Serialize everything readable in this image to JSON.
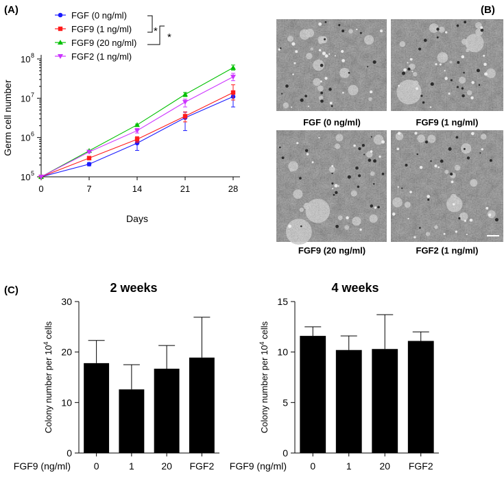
{
  "panels": {
    "a": "(A)",
    "b": "(B)",
    "c": "(C)"
  },
  "chart_data": [
    {
      "type": "line",
      "panel": "A",
      "title": "",
      "xlabel": "Days",
      "ylabel": "Germ cell number",
      "yscale": "log",
      "xlim": [
        0,
        28
      ],
      "ylim_exp": [
        5,
        8
      ],
      "x": [
        0,
        7,
        14,
        21,
        28
      ],
      "x_tick_labels": [
        "0",
        "7",
        "14",
        "21",
        "28"
      ],
      "y_tick_base": "10",
      "y_tick_exponents": [
        "5",
        "6",
        "7",
        "8"
      ],
      "significance_marks": [
        "*",
        "*"
      ],
      "legend_position": "top-left",
      "series": [
        {
          "name": "FGF (0 ng/ml)",
          "color": "#1a1aff",
          "marker": "circle",
          "values": [
            100000,
            210000,
            720000,
            3200000,
            11000000
          ],
          "err_lo": [
            0,
            20000,
            250000,
            1700000,
            5000000
          ],
          "err_hi": [
            0,
            20000,
            150000,
            1200000,
            3000000
          ]
        },
        {
          "name": "FGF9 (1 ng/ml)",
          "color": "#ff1a1a",
          "marker": "square",
          "values": [
            100000,
            300000,
            900000,
            3500000,
            14000000
          ],
          "err_lo": [
            0,
            30000,
            150000,
            1000000,
            5000000
          ],
          "err_hi": [
            0,
            30000,
            150000,
            1000000,
            8000000
          ]
        },
        {
          "name": "FGF9 (20 ng/ml)",
          "color": "#00c000",
          "marker": "triangle-up",
          "values": [
            100000,
            460000,
            2100000,
            12500000,
            60000000
          ],
          "err_lo": [
            0,
            20000,
            100000,
            1500000,
            8000000
          ],
          "err_hi": [
            0,
            20000,
            100000,
            1500000,
            10000000
          ]
        },
        {
          "name": "FGF2 (1 ng/ml)",
          "color": "#cc33ff",
          "marker": "triangle-down",
          "values": [
            100000,
            430000,
            1500000,
            8000000,
            35000000
          ],
          "err_lo": [
            0,
            20000,
            200000,
            2000000,
            7000000
          ],
          "err_hi": [
            0,
            20000,
            200000,
            1500000,
            8000000
          ]
        }
      ]
    },
    {
      "type": "bar",
      "panel": "C-left",
      "title": "2 weeks",
      "ylabel_text": "Colony number per 10",
      "ylabel_sup": "4",
      "ylabel_suffix": " cells",
      "x_axis_caption": "FGF9 (ng/ml)",
      "categories": [
        "0",
        "1",
        "20",
        "FGF2"
      ],
      "values": [
        17.8,
        12.6,
        16.7,
        18.9
      ],
      "errors": [
        4.5,
        4.9,
        4.6,
        8.0
      ],
      "ylim": [
        0,
        30
      ],
      "yticks": [
        "0",
        "10",
        "20",
        "30"
      ],
      "bar_color": "#000000"
    },
    {
      "type": "bar",
      "panel": "C-right",
      "title": "4 weeks",
      "ylabel_text": "Colony number per 10",
      "ylabel_sup": "4",
      "ylabel_suffix": " cells",
      "x_axis_caption": "FGF9 (ng/ml)",
      "categories": [
        "0",
        "1",
        "20",
        "FGF2"
      ],
      "values": [
        11.6,
        10.2,
        10.3,
        11.1
      ],
      "errors": [
        0.9,
        1.4,
        3.4,
        0.9
      ],
      "ylim": [
        0,
        15
      ],
      "yticks": [
        "0",
        "5",
        "10",
        "15"
      ],
      "bar_color": "#000000"
    }
  ],
  "micrographs": {
    "captions": [
      "FGF (0 ng/ml)",
      "FGF9 (1 ng/ml)",
      "FGF9 (20 ng/ml)",
      "FGF2 (1 ng/ml)"
    ]
  }
}
